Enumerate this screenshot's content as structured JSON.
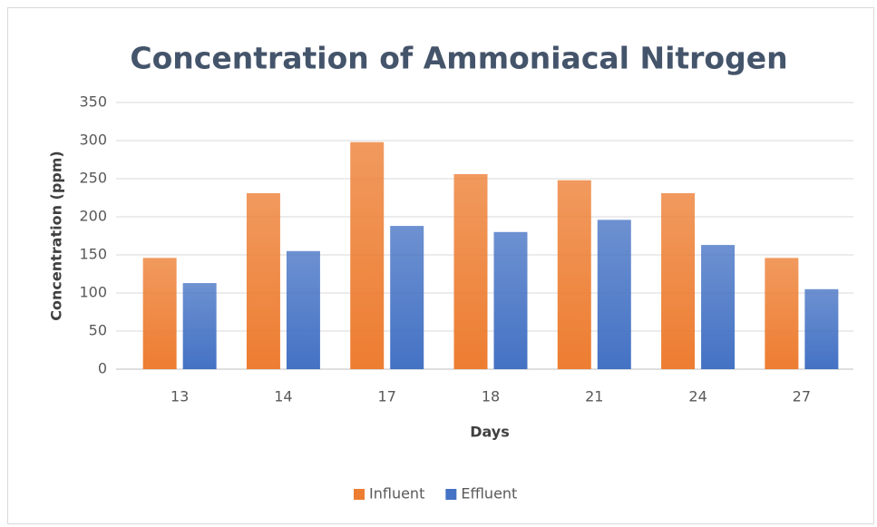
{
  "chart_data": {
    "type": "bar",
    "title": "Concentration of Ammoniacal Nitrogen",
    "x_label": "Days",
    "y_label": "Concentration (ppm)",
    "categories": [
      "13",
      "14",
      "17",
      "18",
      "21",
      "24",
      "27"
    ],
    "series": [
      {
        "name": "Influent",
        "color": "#ed7d31",
        "values": [
          146,
          231,
          298,
          256,
          248,
          231,
          146
        ]
      },
      {
        "name": "Effluent",
        "color": "#4472c4",
        "values": [
          113,
          155,
          188,
          180,
          196,
          163,
          105
        ]
      }
    ],
    "ylim": [
      0,
      350
    ],
    "yticks": [
      0,
      50,
      100,
      150,
      200,
      250,
      300,
      350
    ],
    "grid": true,
    "legend": "bottom"
  }
}
